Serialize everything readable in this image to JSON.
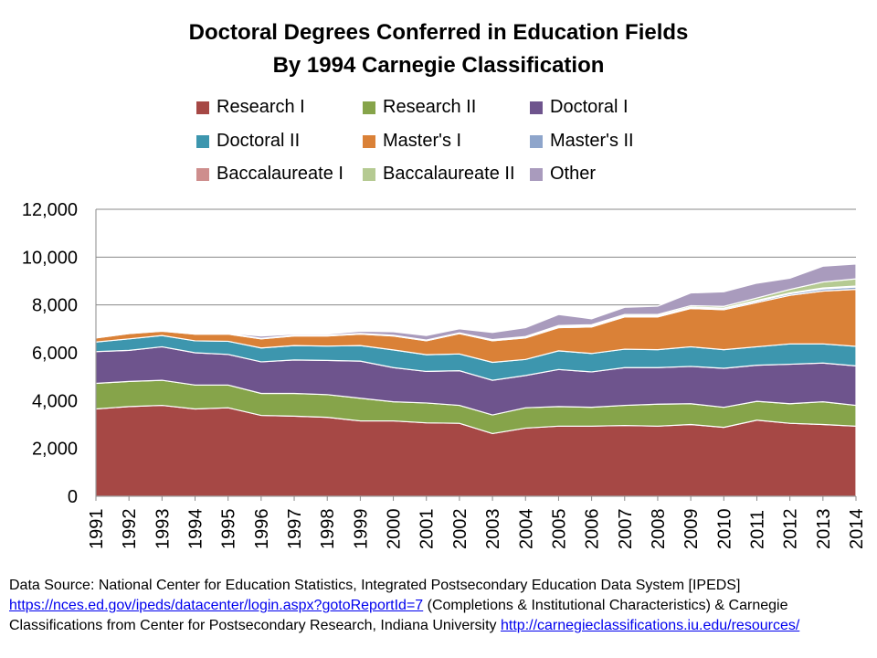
{
  "chart_data": {
    "type": "area",
    "stacked": true,
    "title": "Doctoral Degrees Conferred in Education Fields",
    "subtitle": "By 1994 Carnegie Classification",
    "xlabel": "",
    "ylabel": "",
    "ylim": [
      0,
      12000
    ],
    "yticks": [
      "0",
      "2,000",
      "4,000",
      "6,000",
      "8,000",
      "10,000",
      "12,000"
    ],
    "ytick_values": [
      0,
      2000,
      4000,
      6000,
      8000,
      10000,
      12000
    ],
    "grid": true,
    "legend": "top",
    "categories": [
      "1991",
      "1992",
      "1993",
      "1994",
      "1995",
      "1996",
      "1997",
      "1998",
      "1999",
      "2000",
      "2001",
      "2002",
      "2003",
      "2004",
      "2005",
      "2006",
      "2007",
      "2008",
      "2009",
      "2010",
      "2011",
      "2012",
      "2013",
      "2014"
    ],
    "series": [
      {
        "name": "Research I",
        "color": "#A64845",
        "values": [
          3650,
          3750,
          3800,
          3650,
          3700,
          3380,
          3350,
          3300,
          3150,
          3150,
          3070,
          3050,
          2620,
          2850,
          2930,
          2930,
          2960,
          2930,
          3000,
          2880,
          3180,
          3050,
          3000,
          2930
        ]
      },
      {
        "name": "Research II",
        "color": "#86A44A",
        "values": [
          1070,
          1050,
          1050,
          1000,
          950,
          920,
          950,
          950,
          950,
          800,
          830,
          750,
          780,
          850,
          820,
          790,
          840,
          920,
          870,
          840,
          790,
          820,
          950,
          870
        ]
      },
      {
        "name": "Doctoral I",
        "color": "#6E548D",
        "values": [
          1330,
          1300,
          1400,
          1350,
          1280,
          1320,
          1400,
          1430,
          1550,
          1430,
          1320,
          1450,
          1450,
          1350,
          1550,
          1480,
          1580,
          1530,
          1560,
          1630,
          1510,
          1650,
          1620,
          1650
        ]
      },
      {
        "name": "Doctoral II",
        "color": "#3D96AE",
        "values": [
          400,
          480,
          470,
          500,
          550,
          580,
          600,
          600,
          650,
          740,
          700,
          700,
          750,
          670,
          780,
          770,
          770,
          750,
          820,
          780,
          770,
          850,
          800,
          820
        ]
      },
      {
        "name": "Master's I",
        "color": "#DA8137",
        "values": [
          170,
          220,
          180,
          280,
          300,
          380,
          400,
          420,
          480,
          580,
          580,
          850,
          900,
          900,
          970,
          1110,
          1350,
          1370,
          1600,
          1670,
          1850,
          2030,
          2210,
          2380
        ]
      },
      {
        "name": "Master's II",
        "color": "#8EA5CB",
        "values": [
          10,
          10,
          10,
          10,
          10,
          10,
          10,
          10,
          10,
          10,
          10,
          10,
          20,
          20,
          30,
          30,
          30,
          30,
          40,
          50,
          60,
          70,
          90,
          100
        ]
      },
      {
        "name": "Baccalaureate I",
        "color": "#CE8E8D",
        "values": [
          10,
          10,
          10,
          10,
          10,
          10,
          10,
          10,
          10,
          10,
          10,
          10,
          10,
          10,
          20,
          20,
          20,
          20,
          20,
          20,
          30,
          30,
          40,
          40
        ]
      },
      {
        "name": "Baccalaureate II",
        "color": "#B5CA92",
        "values": [
          5,
          5,
          5,
          5,
          5,
          5,
          5,
          5,
          10,
          10,
          10,
          10,
          20,
          30,
          40,
          40,
          50,
          50,
          60,
          70,
          100,
          150,
          250,
          300
        ]
      },
      {
        "name": "Other",
        "color": "#A99BBD",
        "values": [
          10,
          30,
          25,
          15,
          15,
          95,
          55,
          55,
          90,
          150,
          190,
          170,
          300,
          370,
          460,
          250,
          300,
          350,
          530,
          610,
          620,
          470,
          660,
          620
        ]
      }
    ]
  },
  "footer": {
    "line1": "Data Source: National Center for Education Statistics, Integrated Postsecondary Education Data System [IPEDS]",
    "link1": "https://nces.ed.gov/ipeds/datacenter/login.aspx?gotoReportId=7",
    "line2": " (Completions & Institutional Characteristics) & Carnegie",
    "line3": "Classifications from Center for Postsecondary Research, Indiana University ",
    "link2": "http://carnegieclassifications.iu.edu/resources/"
  }
}
